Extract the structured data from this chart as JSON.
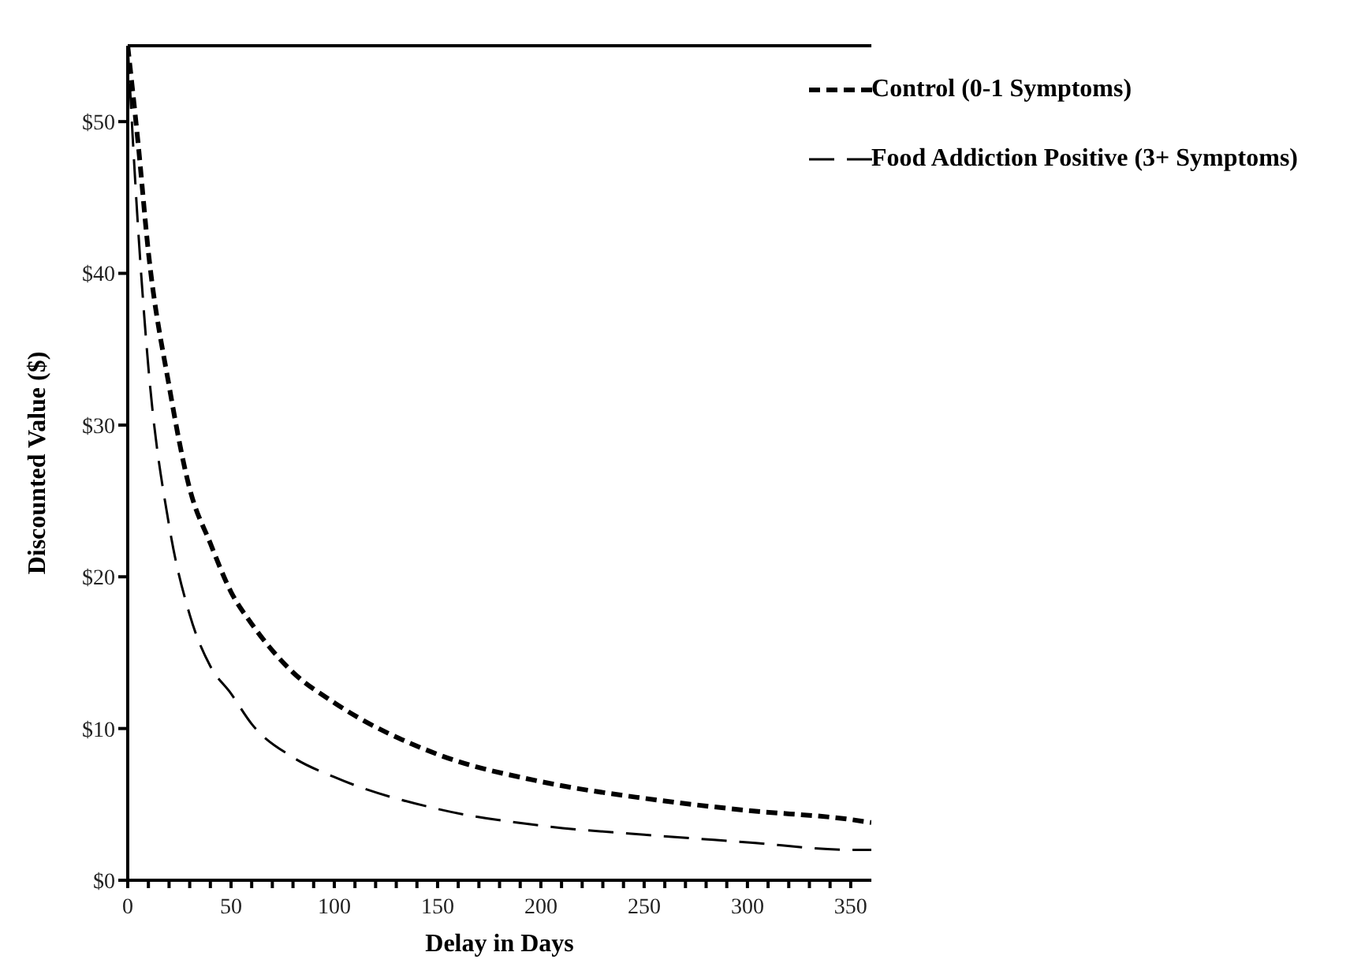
{
  "chart_data": {
    "type": "line",
    "xlabel": "Delay in Days",
    "ylabel": "Discounted Value ($)",
    "x": [
      0,
      5,
      10,
      20,
      30,
      40,
      50,
      60,
      80,
      100,
      150,
      200,
      250,
      300,
      350,
      360
    ],
    "series": [
      {
        "name": "Control (0-1 Symptoms)",
        "color": "#000000",
        "line_style": "dashed",
        "values": [
          55,
          48.6,
          41.4,
          32.6,
          25.8,
          22.2,
          19,
          16.9,
          13.7,
          11.7,
          8.3,
          6.5,
          5.4,
          4.6,
          4,
          3.8
        ]
      },
      {
        "name": "Food Addiction Positive (3+ Symptoms)",
        "color": "#000000",
        "line_style": "dashed",
        "values": [
          55,
          43,
          33.8,
          23.4,
          17.5,
          14.1,
          12.3,
          10.3,
          8.1,
          6.8,
          4.7,
          3.6,
          3,
          2.5,
          2,
          2
        ]
      }
    ],
    "xlim": [
      0,
      360
    ],
    "xticks": [
      0,
      {
        "value": 10,
        "label": null
      },
      {
        "value": 20,
        "label": null
      },
      {
        "value": 30,
        "label": null
      },
      {
        "value": 40,
        "label": null
      },
      50,
      {
        "value": 60,
        "label": null
      },
      {
        "value": 70,
        "label": null
      },
      {
        "value": 80,
        "label": null
      },
      {
        "value": 90,
        "label": null
      },
      100,
      {
        "value": 110,
        "label": null
      },
      {
        "value": 120,
        "label": null
      },
      {
        "value": 130,
        "label": null
      },
      {
        "value": 140,
        "label": null
      },
      150,
      {
        "value": 160,
        "label": null
      },
      {
        "value": 170,
        "label": null
      },
      {
        "value": 180,
        "label": null
      },
      {
        "value": 190,
        "label": null
      },
      200,
      {
        "value": 210,
        "label": null
      },
      {
        "value": 220,
        "label": null
      },
      {
        "value": 230,
        "label": null
      },
      {
        "value": 240,
        "label": null
      },
      250,
      {
        "value": 260,
        "label": null
      },
      {
        "value": 270,
        "label": null
      },
      {
        "value": 280,
        "label": null
      },
      {
        "value": 290,
        "label": null
      },
      300,
      {
        "value": 310,
        "label": null
      },
      {
        "value": 320,
        "label": null
      },
      {
        "value": 330,
        "label": null
      },
      {
        "value": 340,
        "label": null
      },
      350
    ],
    "ylim": [
      0,
      55
    ],
    "yticks": [
      {
        "value": 0,
        "label": "$0"
      },
      {
        "value": 10,
        "label": "$10"
      },
      {
        "value": 20,
        "label": "$20"
      },
      {
        "value": 30,
        "label": "$30"
      },
      {
        "value": 40,
        "label": "$40"
      },
      {
        "value": 50,
        "label": "$50"
      }
    ],
    "grid": false,
    "legend": "top right",
    "marker": "none"
  }
}
